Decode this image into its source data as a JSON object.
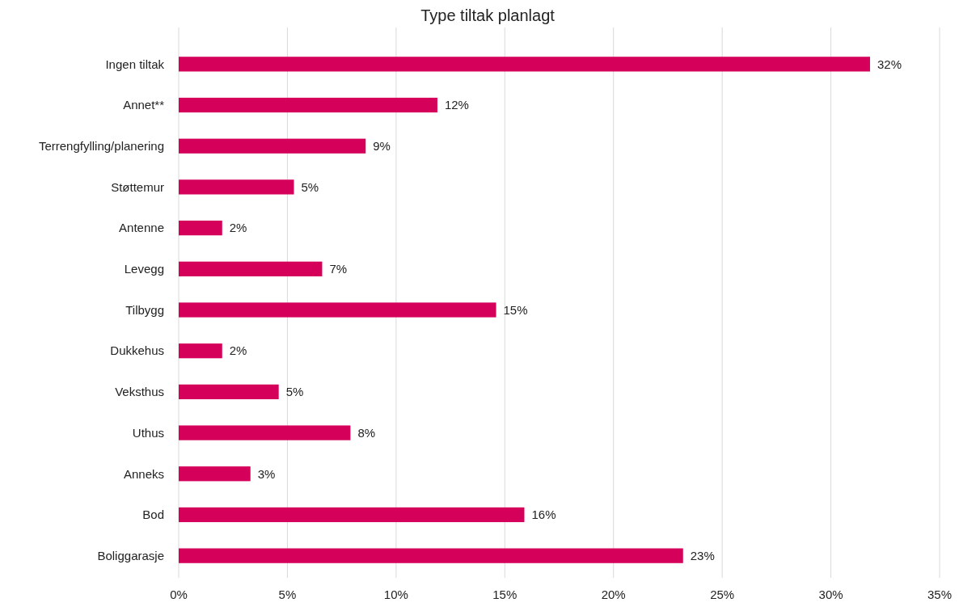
{
  "chart_data": {
    "type": "bar",
    "orientation": "horizontal",
    "title": "Type tiltak planlagt",
    "categories": [
      "Ingen tiltak",
      "Annet**",
      "Terrengfylling/planering",
      "Støttemur",
      "Antenne",
      "Levegg",
      "Tilbygg",
      "Dukkehus",
      "Veksthus",
      "Uthus",
      "Anneks",
      "Bod",
      "Boliggarasje"
    ],
    "values": [
      31.8,
      11.9,
      8.6,
      5.3,
      2.0,
      6.6,
      14.6,
      2.0,
      4.6,
      7.9,
      3.3,
      15.9,
      23.2
    ],
    "value_labels": [
      "32%",
      "12%",
      "9%",
      "5%",
      "2%",
      "7%",
      "15%",
      "2%",
      "5%",
      "8%",
      "3%",
      "16%",
      "23%"
    ],
    "color": "#d5005a",
    "xlim": [
      0,
      35
    ],
    "xticks": [
      {
        "value": 0,
        "label": "0%"
      },
      {
        "value": 5,
        "label": "5%"
      },
      {
        "value": 10,
        "label": "10%"
      },
      {
        "value": 15,
        "label": "15%"
      },
      {
        "value": 20,
        "label": "20%"
      },
      {
        "value": 25,
        "label": "25%"
      },
      {
        "value": 30,
        "label": "30%"
      },
      {
        "value": 35,
        "label": "35%"
      }
    ],
    "grid": "x"
  }
}
